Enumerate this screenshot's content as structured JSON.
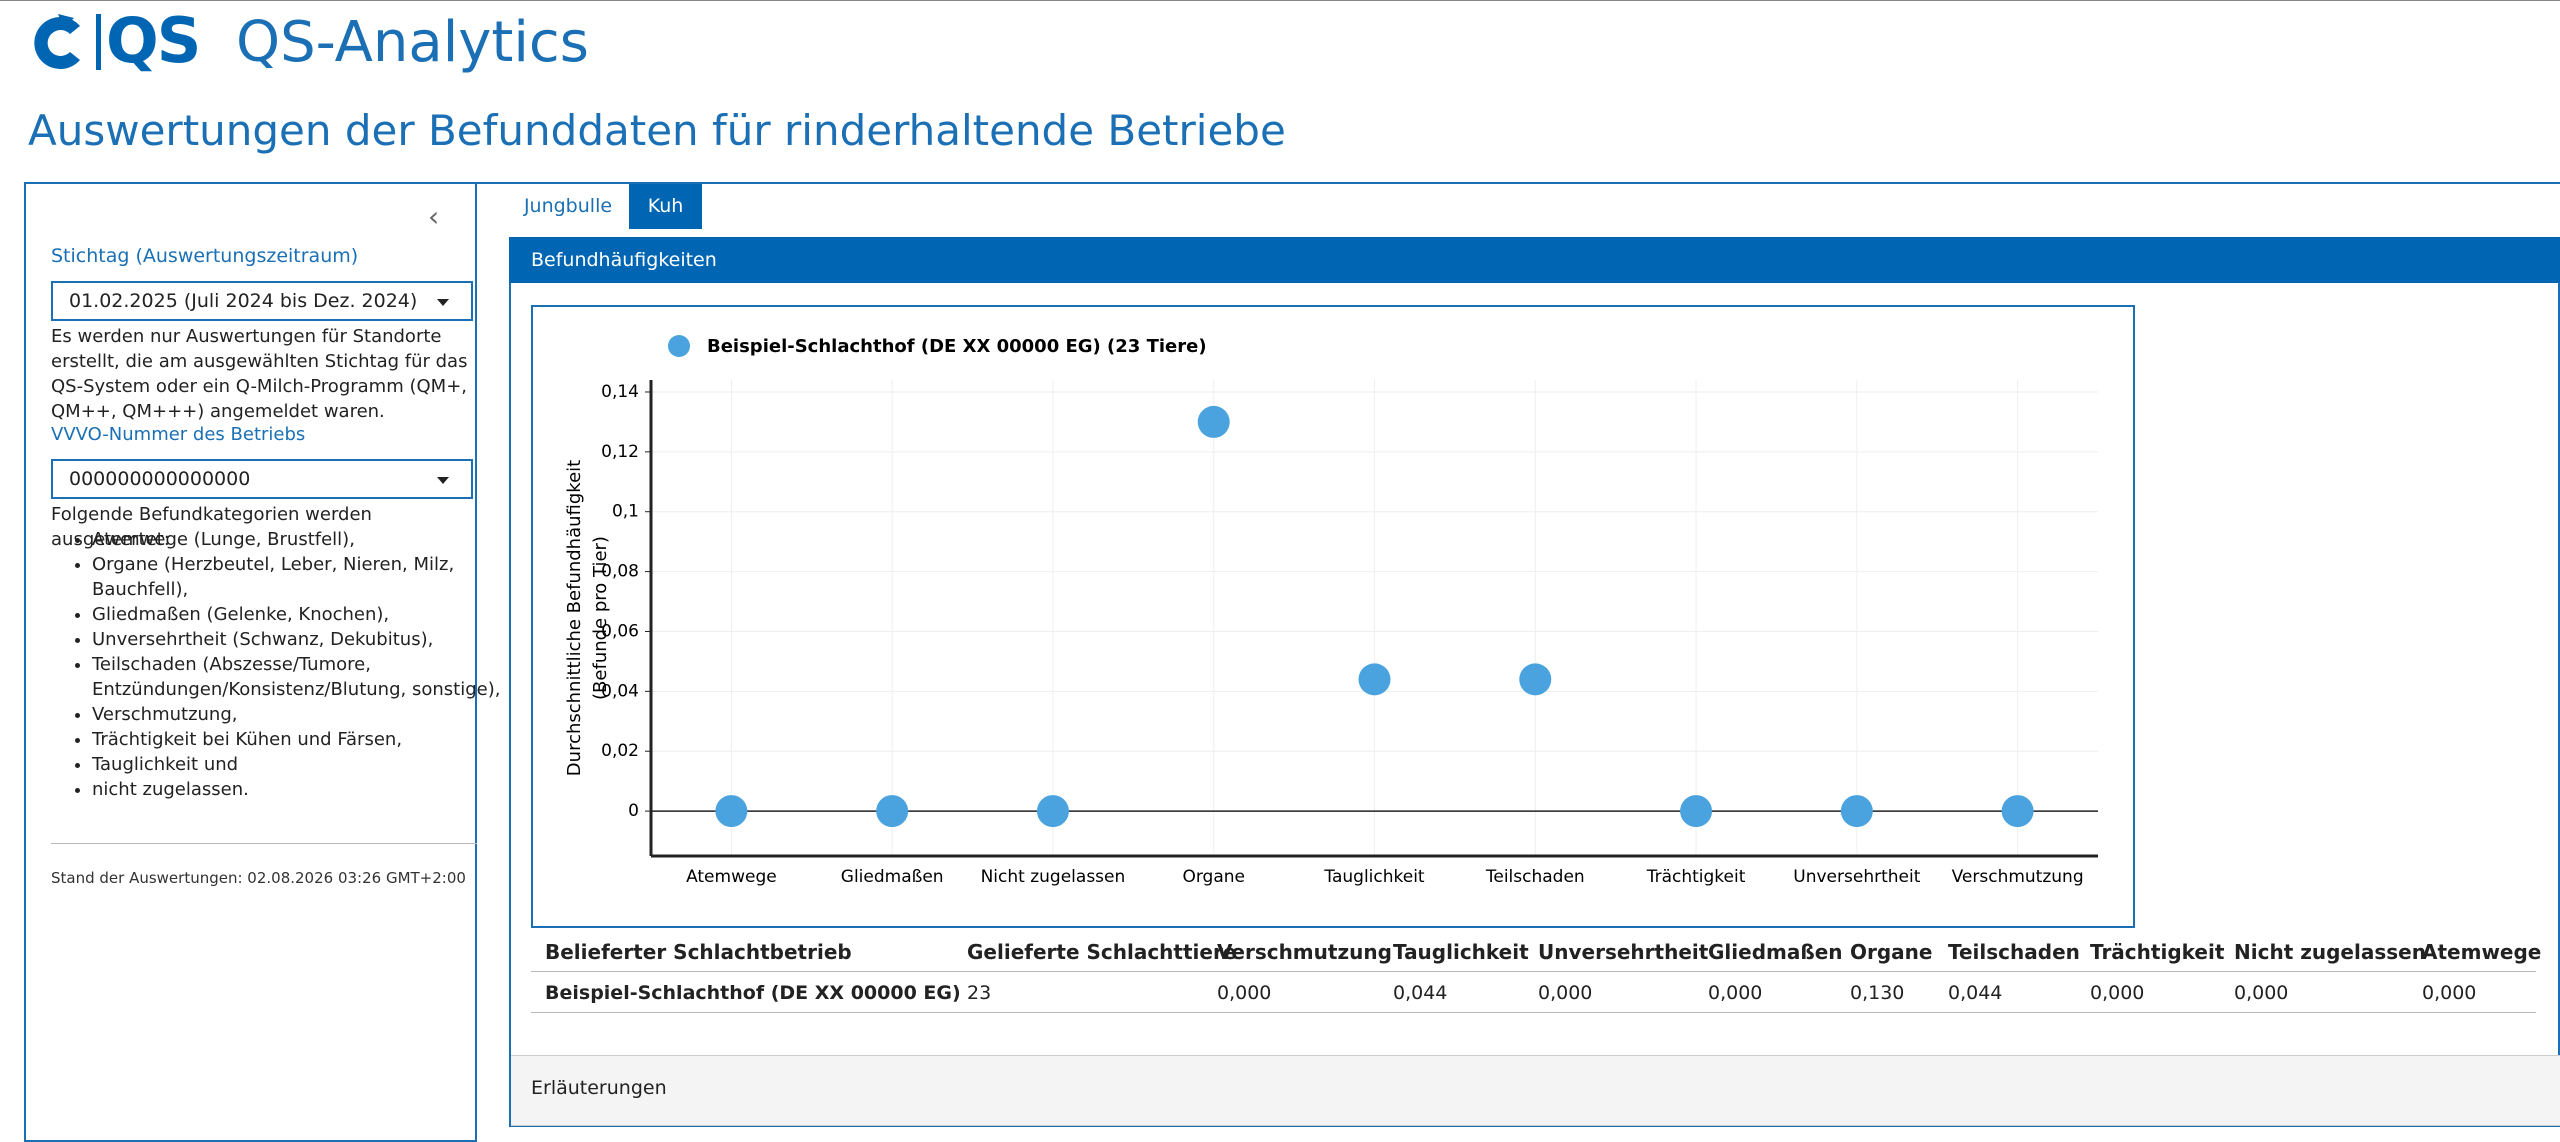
{
  "header": {
    "logo": "QS",
    "app_title": "QS-Analytics",
    "page_title": "Auswertungen der Befunddaten für rinderhaltende Betriebe"
  },
  "sidebar": {
    "date_label": "Stichtag (Auswertungszeitraum)",
    "date_value": "01.02.2025 (Juli 2024 bis Dez. 2024)",
    "date_note": "Es werden nur Auswertungen für Standorte erstellt, die am ausgewählten Stichtag für das QS-System oder ein Q-Milch-Programm (QM+, QM++, QM+++) angemeldet waren.",
    "vvvo_label": "VVVO-Nummer des Betriebs",
    "vvvo_value": "000000000000000",
    "categories_intro": "Folgende Befundkategorien werden ausgewertet:",
    "categories": [
      "Atemwege (Lunge, Brustfell),",
      "Organe (Herzbeutel, Leber, Nieren, Milz, Bauchfell),",
      "Gliedmaßen (Gelenke, Knochen),",
      "Unversehrtheit (Schwanz, Dekubitus),",
      "Teilschaden (Abszesse/Tumore, Entzündungen/Konsistenz/Blutung, sonstige),",
      "Verschmutzung,",
      "Trächtigkeit bei Kühen und Färsen,",
      "Tauglichkeit und",
      "nicht zugelassen."
    ],
    "status": "Stand der Auswertungen: 02.08.2026 03:26 GMT+2:00"
  },
  "tabs": [
    "Jungbulle",
    "Kuh"
  ],
  "panel_title": "Befundhäufigkeiten",
  "chart_data": {
    "type": "scatter",
    "ylabel": [
      "Durchschnittliche Befundhäufigkeit",
      "(Befunde pro Tier)"
    ],
    "categories": [
      "Atemwege",
      "Gliedmaßen",
      "Nicht zugelassen",
      "Organe",
      "Tauglichkeit",
      "Teilschaden",
      "Trächtigkeit",
      "Unversehrtheit",
      "Verschmutzung"
    ],
    "series": [
      {
        "name": "Beispiel-Schlachthof (DE XX 00000 EG) (23 Tiere)",
        "color": "#4aa3df",
        "values": [
          0,
          0,
          0,
          0.13,
          0.044,
          0.044,
          0,
          0,
          0
        ]
      }
    ],
    "ylim": [
      -0.015,
      0.144
    ],
    "yticks": [
      0,
      {
        "value": 0.02,
        "label": "0,02"
      },
      {
        "value": 0.04,
        "label": "0,04"
      },
      {
        "value": 0.06,
        "label": "0,06"
      },
      {
        "value": 0.08,
        "label": "0,08"
      },
      {
        "value": 0.1,
        "label": "0,1"
      },
      {
        "value": 0.12,
        "label": "0,12"
      },
      {
        "value": 0.14,
        "label": "0,14"
      }
    ],
    "grid": true
  },
  "table": {
    "columns": [
      "Belieferter Schlachtbetrieb",
      "Gelieferte Schlachttiere",
      "Verschmutzung",
      "Tauglichkeit",
      "Unversehrtheit",
      "Gliedmaßen",
      "Organe",
      "Teilschaden",
      "Trächtigkeit",
      "Nicht zugelassen",
      "Atemwege"
    ],
    "rows": [
      [
        "Beispiel-Schlachthof (DE XX 00000 EG)",
        "23",
        "0,000",
        "0,044",
        "0,000",
        "0,000",
        "0,130",
        "0,044",
        "0,000",
        "0,000",
        "0,000"
      ]
    ]
  },
  "explanations": "Erläuterungen"
}
